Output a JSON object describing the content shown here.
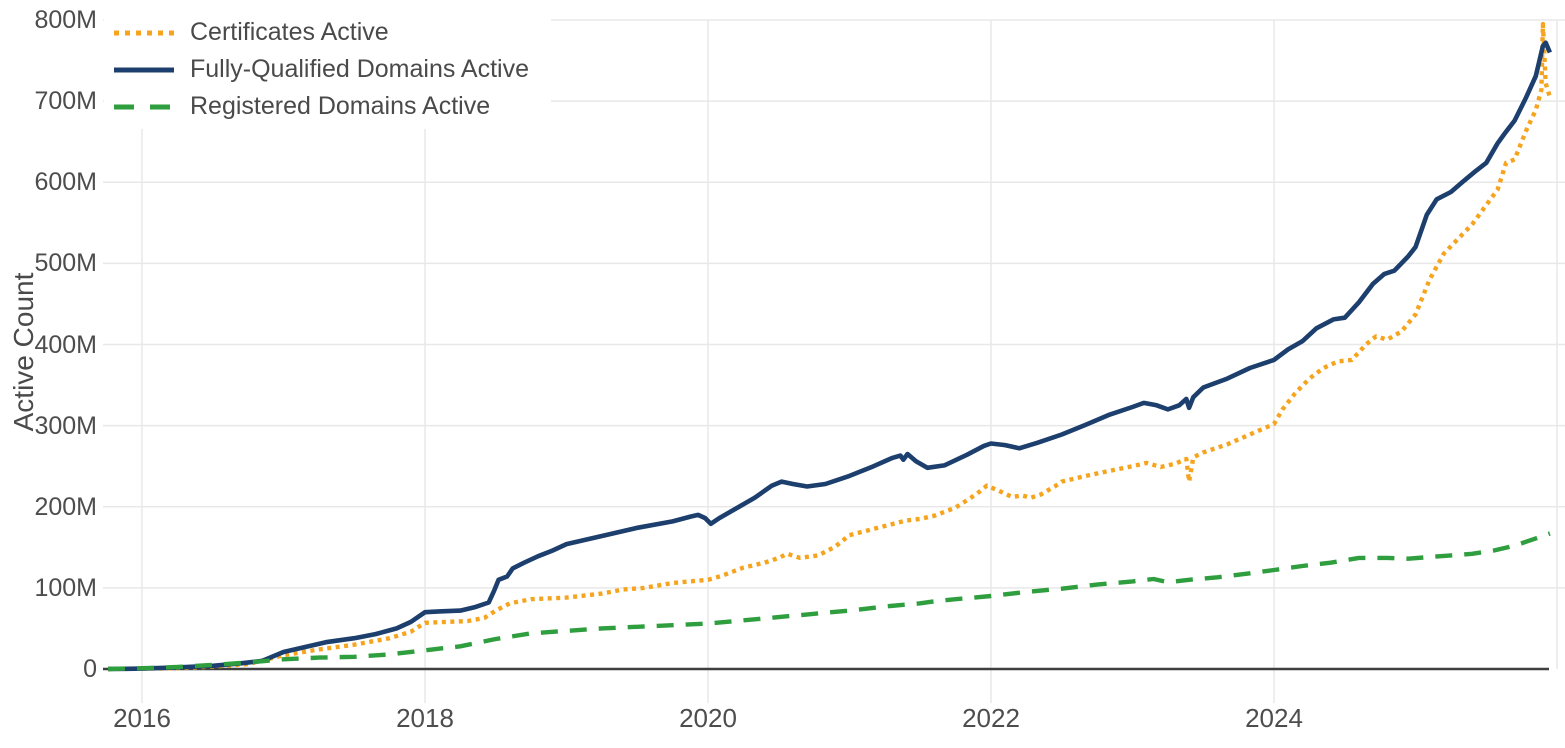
{
  "chart_data": {
    "type": "line",
    "title": "",
    "xlabel": "",
    "ylabel": "Active Count",
    "x_range": [
      2015.76,
      2026.06
    ],
    "y_range": [
      0,
      800
    ],
    "grid": true,
    "legend_position": "top-left",
    "background_color": "#ffffff",
    "gridline_color": "#e8e8e8",
    "axisline_color": "#3f3f3f",
    "tick_text_color": "#4d4d4d",
    "y_ticks": [
      {
        "value": 0,
        "label": "0"
      },
      {
        "value": 100,
        "label": "100M"
      },
      {
        "value": 200,
        "label": "200M"
      },
      {
        "value": 300,
        "label": "300M"
      },
      {
        "value": 400,
        "label": "400M"
      },
      {
        "value": 500,
        "label": "500M"
      },
      {
        "value": 600,
        "label": "600M"
      },
      {
        "value": 700,
        "label": "700M"
      },
      {
        "value": 800,
        "label": "800M"
      }
    ],
    "x_ticks": [
      {
        "value": 2016,
        "label": "2016"
      },
      {
        "value": 2018,
        "label": "2018"
      },
      {
        "value": 2020,
        "label": "2020"
      },
      {
        "value": 2022,
        "label": "2022"
      },
      {
        "value": 2024,
        "label": "2024"
      },
      {
        "value": 2026,
        "label": ""
      }
    ],
    "value_unit": "millions",
    "series": [
      {
        "name": "Certificates Active",
        "color": "#f6a41d",
        "dash": "dotted",
        "width": 4.4,
        "points": [
          [
            2015.76,
            0
          ],
          [
            2016,
            0.5
          ],
          [
            2016.25,
            1
          ],
          [
            2016.5,
            3
          ],
          [
            2016.75,
            6
          ],
          [
            2017,
            17
          ],
          [
            2017.25,
            24
          ],
          [
            2017.5,
            30
          ],
          [
            2017.75,
            38
          ],
          [
            2017.9,
            46
          ],
          [
            2018,
            57
          ],
          [
            2018.15,
            58
          ],
          [
            2018.3,
            59
          ],
          [
            2018.42,
            63
          ],
          [
            2018.5,
            72
          ],
          [
            2018.6,
            81
          ],
          [
            2018.75,
            86
          ],
          [
            2019,
            88
          ],
          [
            2019.25,
            93
          ],
          [
            2019.4,
            98
          ],
          [
            2019.55,
            100
          ],
          [
            2019.75,
            106
          ],
          [
            2020,
            110
          ],
          [
            2020.1,
            115
          ],
          [
            2020.25,
            125
          ],
          [
            2020.4,
            131
          ],
          [
            2020.5,
            137
          ],
          [
            2020.56,
            142
          ],
          [
            2020.65,
            137
          ],
          [
            2020.78,
            140
          ],
          [
            2020.9,
            151
          ],
          [
            2021,
            165
          ],
          [
            2021.2,
            174
          ],
          [
            2021.4,
            183
          ],
          [
            2021.5,
            185
          ],
          [
            2021.6,
            189
          ],
          [
            2021.75,
            199
          ],
          [
            2021.9,
            216
          ],
          [
            2021.97,
            226
          ],
          [
            2022.05,
            220
          ],
          [
            2022.15,
            212
          ],
          [
            2022.22,
            214
          ],
          [
            2022.28,
            211
          ],
          [
            2022.35,
            215
          ],
          [
            2022.45,
            225
          ],
          [
            2022.5,
            231
          ],
          [
            2022.67,
            238
          ],
          [
            2022.83,
            244
          ],
          [
            2023,
            250
          ],
          [
            2023.1,
            254
          ],
          [
            2023.2,
            249
          ],
          [
            2023.3,
            253
          ],
          [
            2023.38,
            259
          ],
          [
            2023.4,
            231
          ],
          [
            2023.43,
            261
          ],
          [
            2023.5,
            267
          ],
          [
            2023.67,
            277
          ],
          [
            2023.83,
            289
          ],
          [
            2024,
            302
          ],
          [
            2024.06,
            320
          ],
          [
            2024.15,
            340
          ],
          [
            2024.25,
            358
          ],
          [
            2024.35,
            371
          ],
          [
            2024.45,
            379
          ],
          [
            2024.55,
            381
          ],
          [
            2024.65,
            400
          ],
          [
            2024.72,
            410
          ],
          [
            2024.8,
            406
          ],
          [
            2024.9,
            416
          ],
          [
            2025,
            437
          ],
          [
            2025.1,
            480
          ],
          [
            2025.2,
            512
          ],
          [
            2025.3,
            530
          ],
          [
            2025.4,
            548
          ],
          [
            2025.5,
            572
          ],
          [
            2025.58,
            591
          ],
          [
            2025.64,
            624
          ],
          [
            2025.7,
            628
          ],
          [
            2025.78,
            663
          ],
          [
            2025.85,
            689
          ],
          [
            2025.89,
            714
          ],
          [
            2025.9,
            795
          ],
          [
            2025.92,
            722
          ],
          [
            2025.95,
            705
          ]
        ]
      },
      {
        "name": "Fully-Qualified Domains Active",
        "color": "#1c3f6e",
        "dash": "solid",
        "width": 4.6,
        "points": [
          [
            2015.76,
            0
          ],
          [
            2016,
            0.5
          ],
          [
            2016.25,
            2
          ],
          [
            2016.5,
            4
          ],
          [
            2016.7,
            7
          ],
          [
            2016.85,
            10
          ],
          [
            2017,
            21
          ],
          [
            2017.15,
            27
          ],
          [
            2017.3,
            33
          ],
          [
            2017.5,
            38
          ],
          [
            2017.65,
            43
          ],
          [
            2017.8,
            50
          ],
          [
            2017.9,
            58
          ],
          [
            2018,
            70
          ],
          [
            2018.1,
            71
          ],
          [
            2018.25,
            72
          ],
          [
            2018.35,
            76
          ],
          [
            2018.45,
            82
          ],
          [
            2018.49,
            97
          ],
          [
            2018.52,
            110
          ],
          [
            2018.58,
            114
          ],
          [
            2018.62,
            124
          ],
          [
            2018.7,
            131
          ],
          [
            2018.8,
            139
          ],
          [
            2018.9,
            146
          ],
          [
            2019,
            154
          ],
          [
            2019.25,
            164
          ],
          [
            2019.5,
            174
          ],
          [
            2019.75,
            182
          ],
          [
            2019.88,
            188
          ],
          [
            2019.93,
            190
          ],
          [
            2019.98,
            186
          ],
          [
            2020.02,
            179
          ],
          [
            2020.08,
            186
          ],
          [
            2020.17,
            195
          ],
          [
            2020.33,
            211
          ],
          [
            2020.45,
            226
          ],
          [
            2020.52,
            231
          ],
          [
            2020.6,
            228
          ],
          [
            2020.7,
            225
          ],
          [
            2020.83,
            228
          ],
          [
            2021,
            238
          ],
          [
            2021.17,
            250
          ],
          [
            2021.3,
            260
          ],
          [
            2021.36,
            263
          ],
          [
            2021.38,
            258
          ],
          [
            2021.41,
            265
          ],
          [
            2021.47,
            256
          ],
          [
            2021.55,
            248
          ],
          [
            2021.67,
            251
          ],
          [
            2021.83,
            264
          ],
          [
            2021.95,
            275
          ],
          [
            2022,
            278
          ],
          [
            2022.1,
            276
          ],
          [
            2022.2,
            272
          ],
          [
            2022.33,
            279
          ],
          [
            2022.5,
            289
          ],
          [
            2022.67,
            301
          ],
          [
            2022.83,
            313
          ],
          [
            2023,
            323
          ],
          [
            2023.08,
            328
          ],
          [
            2023.17,
            325
          ],
          [
            2023.25,
            320
          ],
          [
            2023.33,
            325
          ],
          [
            2023.38,
            333
          ],
          [
            2023.4,
            322
          ],
          [
            2023.43,
            335
          ],
          [
            2023.5,
            347
          ],
          [
            2023.67,
            358
          ],
          [
            2023.83,
            371
          ],
          [
            2024,
            381
          ],
          [
            2024.1,
            394
          ],
          [
            2024.2,
            404
          ],
          [
            2024.3,
            420
          ],
          [
            2024.42,
            431
          ],
          [
            2024.5,
            433
          ],
          [
            2024.6,
            452
          ],
          [
            2024.7,
            475
          ],
          [
            2024.78,
            487
          ],
          [
            2024.85,
            491
          ],
          [
            2024.95,
            509
          ],
          [
            2025,
            520
          ],
          [
            2025.08,
            560
          ],
          [
            2025.15,
            579
          ],
          [
            2025.25,
            588
          ],
          [
            2025.33,
            600
          ],
          [
            2025.42,
            613
          ],
          [
            2025.5,
            624
          ],
          [
            2025.58,
            648
          ],
          [
            2025.63,
            660
          ],
          [
            2025.7,
            676
          ],
          [
            2025.78,
            704
          ],
          [
            2025.85,
            731
          ],
          [
            2025.9,
            768
          ],
          [
            2025.92,
            772
          ],
          [
            2025.95,
            760
          ]
        ]
      },
      {
        "name": "Registered Domains Active",
        "color": "#2f9e3e",
        "dash": "dashed",
        "width": 4.4,
        "points": [
          [
            2015.76,
            0
          ],
          [
            2016,
            1
          ],
          [
            2016.25,
            2.5
          ],
          [
            2016.5,
            5
          ],
          [
            2016.75,
            8
          ],
          [
            2017,
            12
          ],
          [
            2017.25,
            14
          ],
          [
            2017.5,
            15
          ],
          [
            2017.75,
            18
          ],
          [
            2018,
            23
          ],
          [
            2018.25,
            28
          ],
          [
            2018.5,
            37
          ],
          [
            2018.75,
            44
          ],
          [
            2019,
            47
          ],
          [
            2019.25,
            50
          ],
          [
            2019.5,
            52
          ],
          [
            2019.75,
            54
          ],
          [
            2020,
            56
          ],
          [
            2020.25,
            60
          ],
          [
            2020.5,
            64
          ],
          [
            2020.75,
            68
          ],
          [
            2021,
            72
          ],
          [
            2021.25,
            77
          ],
          [
            2021.5,
            81
          ],
          [
            2021.62,
            84
          ],
          [
            2021.75,
            86
          ],
          [
            2022,
            90
          ],
          [
            2022.25,
            95
          ],
          [
            2022.5,
            99
          ],
          [
            2022.75,
            104
          ],
          [
            2023,
            108
          ],
          [
            2023.15,
            111
          ],
          [
            2023.25,
            107
          ],
          [
            2023.4,
            110
          ],
          [
            2023.6,
            113
          ],
          [
            2023.83,
            118
          ],
          [
            2024,
            122
          ],
          [
            2024.2,
            127
          ],
          [
            2024.4,
            131
          ],
          [
            2024.6,
            137
          ],
          [
            2024.8,
            137
          ],
          [
            2024.95,
            136
          ],
          [
            2025.1,
            138
          ],
          [
            2025.25,
            140
          ],
          [
            2025.4,
            142
          ],
          [
            2025.55,
            146
          ],
          [
            2025.7,
            152
          ],
          [
            2025.85,
            161
          ],
          [
            2025.95,
            167
          ]
        ]
      }
    ]
  }
}
